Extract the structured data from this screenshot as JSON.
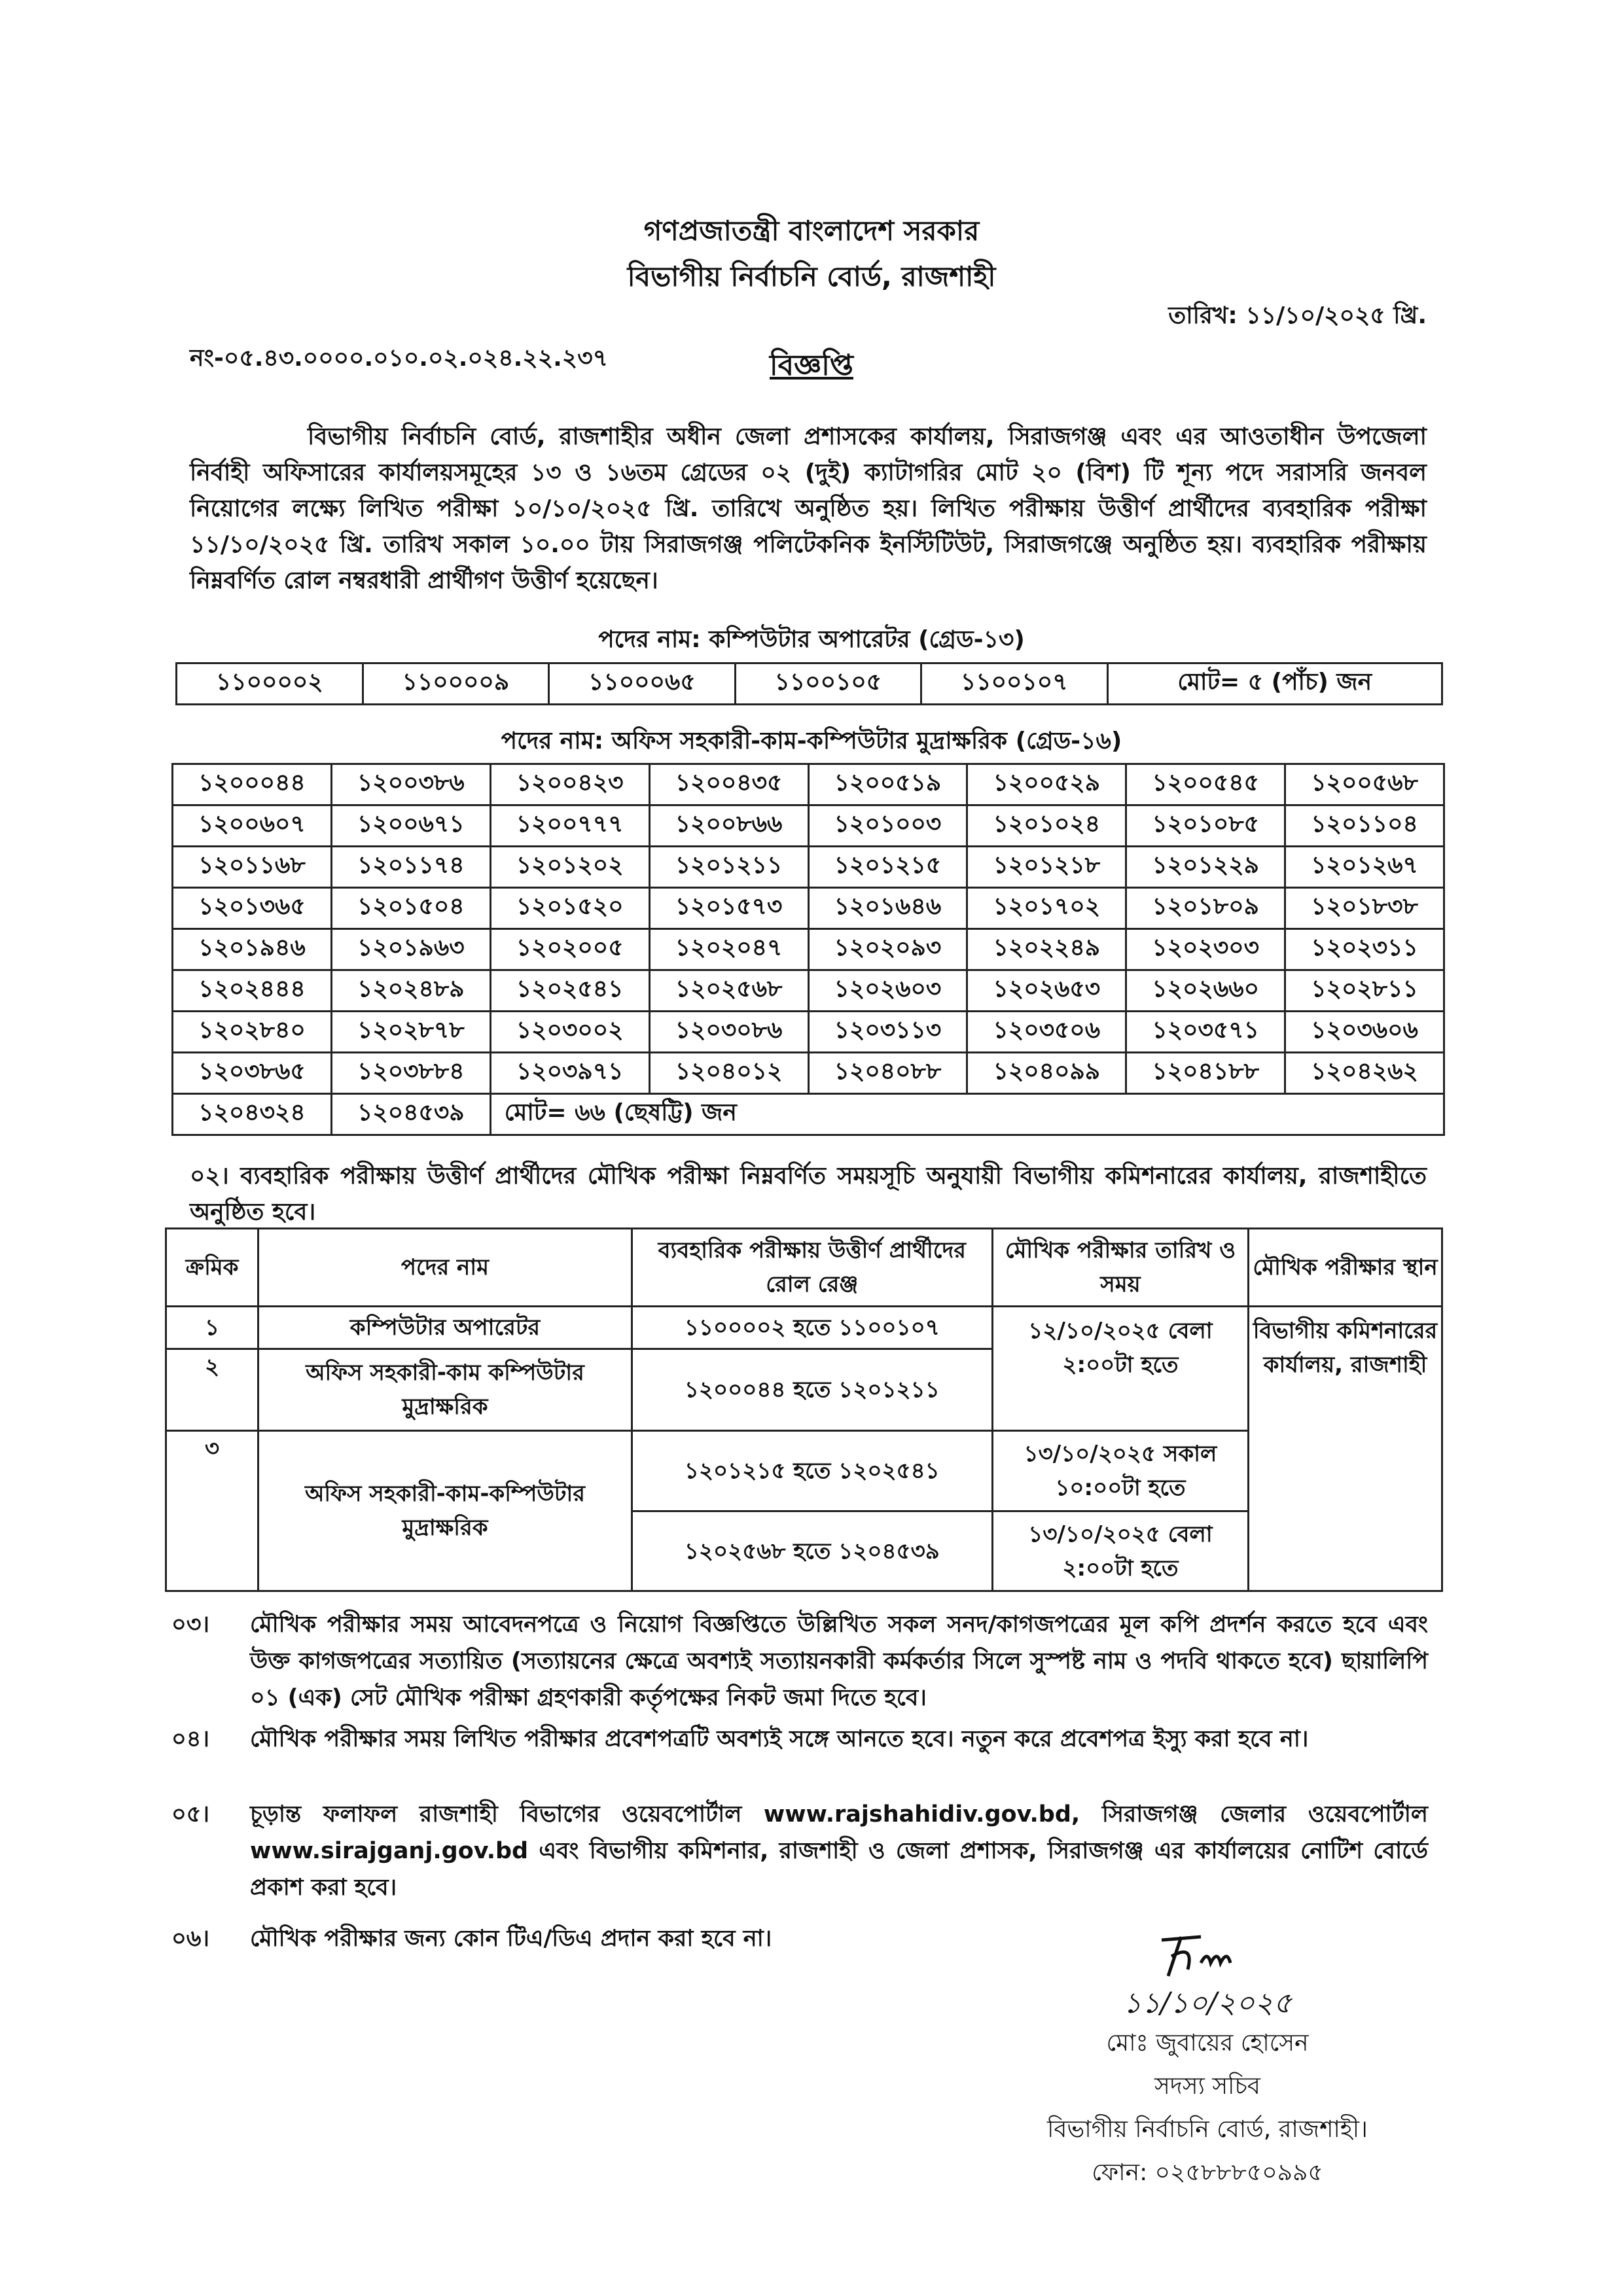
{
  "header": {
    "government": "গণপ্রজাতন্ত্রী বাংলাদেশ সরকার",
    "office": "বিভাগীয় নির্বাচনি বোর্ড, রাজশাহী",
    "memo_no": "নং-০৫.৪৩.০০০০.০১০.০২.০২৪.২২.২৩৭",
    "date": "তারিখ: ১১/১০/২০২৫ খ্রি.",
    "title": "বিজ্ঞপ্তি"
  },
  "intro": "বিভাগীয় নির্বাচনি বোর্ড, রাজশাহীর অধীন জেলা প্রশাসকের কার্যালয়, সিরাজগঞ্জ এবং এর আওতাধীন উপজেলা নির্বাহী অফিসারের কার্যালয়সমূহের ১৩ ও ১৬তম গ্রেডের ০২ (দুই) ক্যাটাগরির মোট ২০ (বিশ) টি শূন্য পদে সরাসরি জনবল নিয়োগের লক্ষ্যে লিখিত পরীক্ষা ১০/১০/২০২৫ খ্রি. তারিখে অনুষ্ঠিত হয়। লিখিত পরীক্ষায় উত্তীর্ণ প্রার্থীদের ব্যবহারিক পরীক্ষা ১১/১০/২০২৫ খ্রি. তারিখ সকাল ১০.০০ টায় সিরাজগঞ্জ পলিটেকনিক ইনস্টিটিউট, সিরাজগঞ্জে অনুষ্ঠিত হয়। ব্যবহারিক পরীক্ষায় নিম্নবর্ণিত রোল নম্বরধারী প্রার্থীগণ উত্তীর্ণ হয়েছেন।",
  "post1": {
    "title": "পদের নাম: কম্পিউটার অপারেটর (গ্রেড-১৩)",
    "rolls": [
      "১১০০০০২",
      "১১০০০০৯",
      "১১০০০৬৫",
      "১১০০১০৫",
      "১১০০১০৭"
    ],
    "total": "মোট= ৫ (পাঁচ) জন"
  },
  "post2": {
    "title": "পদের নাম: অফিস সহকারী-কাম-কম্পিউটার মুদ্রাক্ষরিক (গ্রেড-১৬)",
    "rows": [
      [
        "১২০০০৪৪",
        "১২০০৩৮৬",
        "১২০০৪২৩",
        "১২০০৪৩৫",
        "১২০০৫১৯",
        "১২০০৫২৯",
        "১২০০৫৪৫",
        "১২০০৫৬৮"
      ],
      [
        "১২০০৬০৭",
        "১২০০৬৭১",
        "১২০০৭৭৭",
        "১২০০৮৬৬",
        "১২০১০০৩",
        "১২০১০২৪",
        "১২০১০৮৫",
        "১২০১১০৪"
      ],
      [
        "১২০১১৬৮",
        "১২০১১৭৪",
        "১২০১২০২",
        "১২০১২১১",
        "১২০১২১৫",
        "১২০১২১৮",
        "১২০১২২৯",
        "১২০১২৬৭"
      ],
      [
        "১২০১৩৬৫",
        "১২০১৫০৪",
        "১২০১৫২০",
        "১২০১৫৭৩",
        "১২০১৬৪৬",
        "১২০১৭০২",
        "১২০১৮০৯",
        "১২০১৮৩৮"
      ],
      [
        "১২০১৯৪৬",
        "১২০১৯৬৩",
        "১২০২০০৫",
        "১২০২০৪৭",
        "১২০২০৯৩",
        "১২০২২৪৯",
        "১২০২৩০৩",
        "১২০২৩১১"
      ],
      [
        "১২০২৪৪৪",
        "১২০২৪৮৯",
        "১২০২৫৪১",
        "১২০২৫৬৮",
        "১২০২৬০৩",
        "১২০২৬৫৩",
        "১২০২৬৬০",
        "১২০২৮১১"
      ],
      [
        "১২০২৮৪০",
        "১২০২৮৭৮",
        "১২০৩০০২",
        "১২০৩০৮৬",
        "১২০৩১১৩",
        "১২০৩৫০৬",
        "১২০৩৫৭১",
        "১২০৩৬০৬"
      ],
      [
        "১২০৩৮৬৫",
        "১২০৩৮৮৪",
        "১২০৩৯৭১",
        "১২০৪০১২",
        "১২০৪০৮৮",
        "১২০৪০৯৯",
        "১২০৪১৮৮",
        "১২০৪২৬২"
      ]
    ],
    "last_row": [
      "১২০৪৩২৪",
      "১২০৪৫৩৯"
    ],
    "total": "মোট= ৬৬ (ছেষট্টি) জন"
  },
  "para2": "০২। ব্যবহারিক পরীক্ষায় উত্তীর্ণ প্রার্থীদের মৌখিক পরীক্ষা নিম্নবর্ণিত সময়সূচি অনুযায়ী বিভাগীয় কমিশনারের কার্যালয়, রাজশাহীতে অনুষ্ঠিত হবে।",
  "schedule": {
    "headers": [
      "ক্রমিক",
      "পদের নাম",
      "ব্যবহারিক পরীক্ষায় উত্তীর্ণ প্রার্থীদের রোল রেঞ্জ",
      "মৌখিক পরীক্ষার তারিখ ও সময়",
      "মৌখিক পরীক্ষার স্থান"
    ],
    "rows": [
      {
        "serial": "১",
        "post": "কম্পিউটার অপারেটর",
        "range": "১১০০০০২ হতে ১১০০১০৭"
      },
      {
        "serial": "২",
        "post": "অফিস সহকারী-কাম কম্পিউটার মুদ্রাক্ষরিক",
        "range": "১২০০০৪৪ হতে ১২০১২১১"
      },
      {
        "serial": "৩",
        "post": "অফিস সহকারী-কাম-কম্পিউটার মুদ্রাক্ষরিক",
        "range": "১২০১২১৫ হতে ১২০২৫৪১",
        "range2": "১২০২৫৬৮ হতে ১২০৪৫৩৯"
      }
    ],
    "slot1": "১২/১০/২০২৫ বেলা ২:০০টা হতে",
    "slot2": "১৩/১০/২০২৫ সকাল ১০:০০টা হতে",
    "slot3": "১৩/১০/২০২৫ বেলা ২:০০টা হতে",
    "venue": "বিভাগীয় কমিশনারের কার্যালয়, রাজশাহী"
  },
  "notes": [
    {
      "num": "০৩।",
      "text": "মৌখিক পরীক্ষার সময় আবেদনপত্রে ও নিয়োগ বিজ্ঞপ্তিতে উল্লিখিত সকল সনদ/কাগজপত্রের মূল কপি প্রদর্শন করতে হবে এবং উক্ত কাগজপত্রের সত্যায়িত (সত্যায়নের ক্ষেত্রে অবশ্যই সত্যায়নকারী কর্মকর্তার সিলে সুস্পষ্ট নাম ও পদবি থাকতে হবে) ছায়ালিপি ০১ (এক) সেট মৌখিক পরীক্ষা গ্রহণকারী কর্তৃপক্ষের নিকট জমা দিতে হবে।"
    },
    {
      "num": "০৪।",
      "text": "মৌখিক পরীক্ষার সময় লিখিত পরীক্ষার প্রবেশপত্রটি অবশ্যই সঙ্গে আনতে হবে। নতুন করে প্রবেশপত্র ইস্যু করা হবে না।"
    },
    {
      "num": "০৫।",
      "text": "চূড়ান্ত ফলাফল রাজশাহী বিভাগের ওয়েবপোর্টাল www.rajshahidiv.gov.bd, সিরাজগঞ্জ জেলার ওয়েবপোর্টাল www.sirajganj.gov.bd এবং বিভাগীয় কমিশনার, রাজশাহী ও জেলা প্রশাসক, সিরাজগঞ্জ এর কার্যালয়ের নোটিশ বোর্ডে প্রকাশ করা হবে।"
    },
    {
      "num": "০৬।",
      "text": "মৌখিক পরীক্ষার জন্য কোন টিএ/ডিএ প্রদান করা হবে না।"
    }
  ],
  "signature": {
    "handwritten_date": "১১/১০/২০২৫",
    "name": "মোঃ জুবায়ের হোসেন",
    "designation": "সদস্য সচিব",
    "office": "বিভাগীয় নির্বাচনি বোর্ড, রাজশাহী।",
    "phone": "ফোন: ০২৫৮৮৮৫০৯৯৫"
  }
}
